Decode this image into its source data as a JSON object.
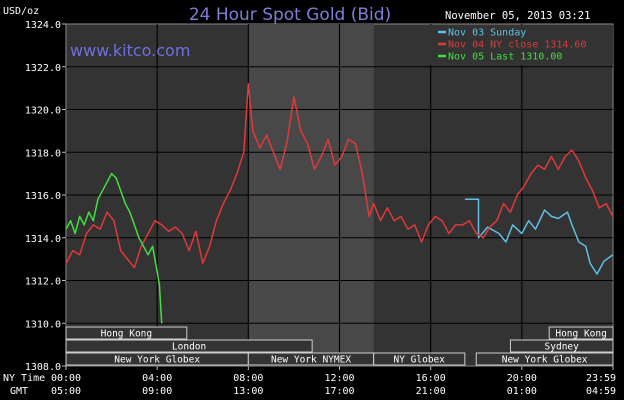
{
  "header": {
    "unit": "USD/oz",
    "title": "24 Hour Spot Gold (Bid)",
    "date": "November 05, 2013 03:21",
    "website": "www.kitco.com"
  },
  "legend": [
    {
      "label": "Nov 03 Sunday",
      "color": "#5fc0e6"
    },
    {
      "label": "Nov 04 NY close 1314.60",
      "color": "#e0393a"
    },
    {
      "label": "Nov 05 Last 1310.00",
      "color": "#44dd44"
    }
  ],
  "sessions": [
    {
      "label": "Hong Kong",
      "row": 0,
      "from": 0,
      "to": 5.3
    },
    {
      "label": "Hong Kong",
      "row": 0,
      "from": 21.2,
      "to": 24
    },
    {
      "label": "London",
      "row": 1,
      "from": 0,
      "to": 10.8
    },
    {
      "label": "Sydney",
      "row": 1,
      "from": 19.5,
      "to": 24
    },
    {
      "label": "New York Globex",
      "row": 2,
      "from": 0,
      "to": 8
    },
    {
      "label": "New York NYMEX",
      "row": 2,
      "from": 8,
      "to": 13.5
    },
    {
      "label": "NY Globex",
      "row": 2,
      "from": 13.5,
      "to": 17.5
    },
    {
      "label": "New York Globex",
      "row": 2,
      "from": 18,
      "to": 24
    }
  ],
  "time_axis": {
    "ny_label": "NY Time",
    "gmt_label": "GMT",
    "ny_ticks": [
      "00:00",
      "04:00",
      "08:00",
      "12:00",
      "16:00",
      "20:00",
      "23:59"
    ],
    "gmt_ticks": [
      "05:00",
      "09:00",
      "13:00",
      "17:00",
      "21:00",
      "01:00",
      "04:59"
    ]
  },
  "chart_data": {
    "type": "line",
    "title": "24 Hour Spot Gold (Bid)",
    "ylabel": "USD/oz",
    "xlabel": "NY Time",
    "xlim": [
      0,
      24
    ],
    "ylim": [
      1308,
      1324
    ],
    "yticks": [
      "1308.0",
      "1310.0",
      "1312.0",
      "1314.0",
      "1316.0",
      "1318.0",
      "1320.0",
      "1322.0",
      "1324.0"
    ],
    "grid": true,
    "shaded_hours": [
      8,
      13.5
    ],
    "series": [
      {
        "name": "Nov 03 Sunday",
        "color": "#5fc0e6",
        "x": [
          17.5,
          18.0,
          18.1,
          18.1,
          18.5,
          19.0,
          19.3,
          19.6,
          20.0,
          20.3,
          20.6,
          21.0,
          21.3,
          21.6,
          22.0,
          22.2,
          22.5,
          22.8,
          23.0,
          23.3,
          23.6,
          23.99
        ],
        "y": [
          1315.8,
          1315.8,
          1315.8,
          1314.0,
          1314.5,
          1314.2,
          1313.8,
          1314.6,
          1314.2,
          1314.8,
          1314.4,
          1315.3,
          1315.0,
          1314.9,
          1315.2,
          1314.6,
          1313.8,
          1313.6,
          1312.8,
          1312.3,
          1312.9,
          1313.2
        ]
      },
      {
        "name": "Nov 04 NY close 1314.60",
        "color": "#e0393a",
        "x": [
          0.0,
          0.3,
          0.6,
          0.9,
          1.2,
          1.5,
          1.8,
          2.1,
          2.4,
          2.7,
          3.0,
          3.3,
          3.6,
          3.9,
          4.2,
          4.5,
          4.8,
          5.1,
          5.4,
          5.7,
          6.0,
          6.3,
          6.6,
          6.9,
          7.2,
          7.5,
          7.8,
          8.0,
          8.2,
          8.5,
          8.8,
          9.1,
          9.4,
          9.7,
          10.0,
          10.3,
          10.6,
          10.9,
          11.2,
          11.5,
          11.8,
          12.1,
          12.4,
          12.7,
          13.0,
          13.3,
          13.5,
          13.8,
          14.1,
          14.4,
          14.7,
          15.0,
          15.3,
          15.6,
          15.9,
          16.2,
          16.5,
          16.8,
          17.1,
          17.4,
          17.7,
          18.0,
          18.3,
          18.6,
          18.9,
          19.2,
          19.5,
          19.8,
          20.1,
          20.4,
          20.7,
          21.0,
          21.3,
          21.6,
          21.9,
          22.2,
          22.5,
          22.8,
          23.1,
          23.4,
          23.7,
          23.99
        ],
        "y": [
          1312.8,
          1313.4,
          1313.2,
          1314.2,
          1314.6,
          1314.4,
          1315.2,
          1314.8,
          1313.4,
          1313.0,
          1312.6,
          1313.6,
          1314.2,
          1314.8,
          1314.6,
          1314.3,
          1314.5,
          1314.2,
          1313.4,
          1314.3,
          1312.8,
          1313.6,
          1314.8,
          1315.6,
          1316.2,
          1317.0,
          1318.0,
          1321.2,
          1319.0,
          1318.2,
          1318.8,
          1318.0,
          1317.2,
          1318.5,
          1320.6,
          1319.0,
          1318.4,
          1317.2,
          1317.8,
          1318.6,
          1317.4,
          1317.8,
          1318.6,
          1318.4,
          1317.0,
          1315.0,
          1315.6,
          1314.8,
          1315.4,
          1314.8,
          1315.0,
          1314.4,
          1314.6,
          1313.8,
          1314.6,
          1315.0,
          1314.8,
          1314.2,
          1314.6,
          1314.6,
          1314.8,
          1314.2,
          1314.0,
          1314.5,
          1314.8,
          1315.6,
          1315.2,
          1316.0,
          1316.4,
          1317.0,
          1317.4,
          1317.2,
          1317.8,
          1317.2,
          1317.8,
          1318.1,
          1317.6,
          1316.8,
          1316.2,
          1315.4,
          1315.6,
          1315.0
        ]
      },
      {
        "name": "Nov 05 Last 1310.00",
        "color": "#44dd44",
        "x": [
          0.0,
          0.2,
          0.4,
          0.6,
          0.8,
          1.0,
          1.2,
          1.4,
          1.6,
          1.8,
          2.0,
          2.2,
          2.4,
          2.6,
          2.8,
          3.0,
          3.2,
          3.4,
          3.6,
          3.8,
          4.0,
          4.1,
          4.2
        ],
        "y": [
          1314.4,
          1314.8,
          1314.2,
          1315.0,
          1314.6,
          1315.2,
          1314.8,
          1315.8,
          1316.2,
          1316.6,
          1317.0,
          1316.8,
          1316.2,
          1315.6,
          1315.2,
          1314.6,
          1314.0,
          1313.6,
          1313.2,
          1313.6,
          1312.4,
          1311.8,
          1310.0
        ]
      }
    ]
  }
}
